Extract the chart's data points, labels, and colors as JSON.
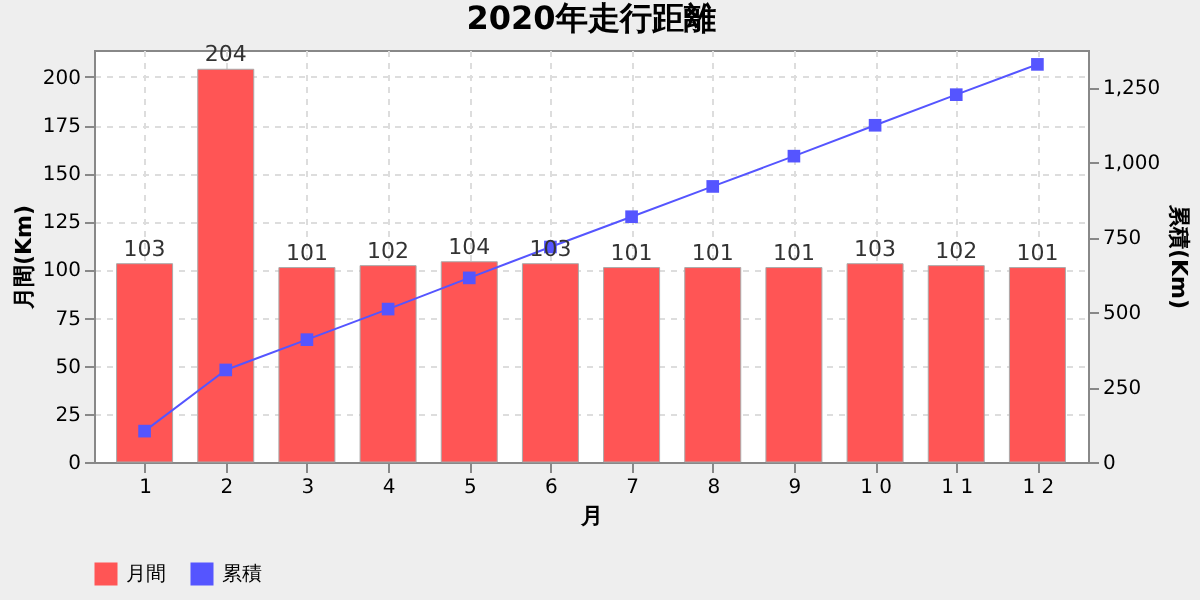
{
  "chart_data": {
    "type": "bar",
    "title": "2020年走行距離",
    "xlabel": "月",
    "ylabel": "月間(Km)",
    "y2label": "累積(Km)",
    "categories": [
      "1",
      "2",
      "3",
      "4",
      "5",
      "6",
      "7",
      "8",
      "9",
      "1 0",
      "1 1",
      "1 2"
    ],
    "series": [
      {
        "name": "月間",
        "color": "#ff5555",
        "values": [
          103,
          204,
          101,
          102,
          104,
          103,
          101,
          101,
          101,
          103,
          102,
          101
        ],
        "value_labels": [
          "103",
          "204",
          "101",
          "102",
          "104",
          "103",
          "101",
          "101",
          "101",
          "103",
          "102",
          "101"
        ]
      },
      {
        "name": "累積",
        "color": "#5555ff",
        "type": "line",
        "axis": "y2",
        "marker": "square",
        "line_style": "solid",
        "values": [
          103,
          307,
          408,
          510,
          614,
          717,
          818,
          919,
          1020,
          1123,
          1225,
          1326
        ]
      }
    ],
    "ylim": [
      0,
      214
    ],
    "yticks": [
      0,
      25,
      50,
      75,
      100,
      125,
      150,
      175,
      200
    ],
    "y2lim": [
      0,
      1374
    ],
    "y2ticks": [
      0,
      {
        "value": 250,
        "label": "250"
      },
      {
        "value": 500,
        "label": "500"
      },
      {
        "value": 750,
        "label": "750"
      },
      {
        "value": 1000,
        "label": "1,000"
      },
      {
        "value": 1250,
        "label": "1,250"
      }
    ],
    "grid": true,
    "legend": "bottom"
  }
}
